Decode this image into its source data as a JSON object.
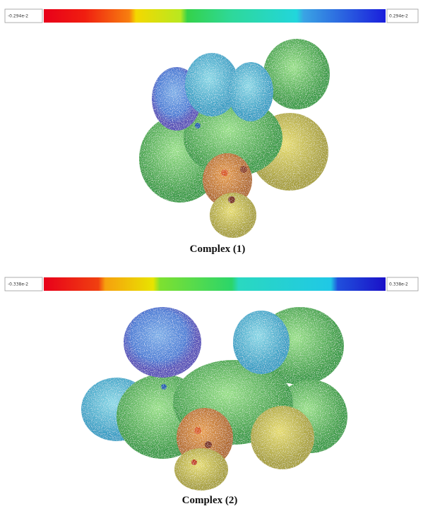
{
  "panels": [
    {
      "scale_min": "-0.294e-2",
      "scale_max": "0.294e-2",
      "caption": "Complex (1)"
    },
    {
      "scale_min": "-0.338e-2",
      "scale_max": "0.338e-2",
      "caption": "Complex (2)"
    }
  ]
}
